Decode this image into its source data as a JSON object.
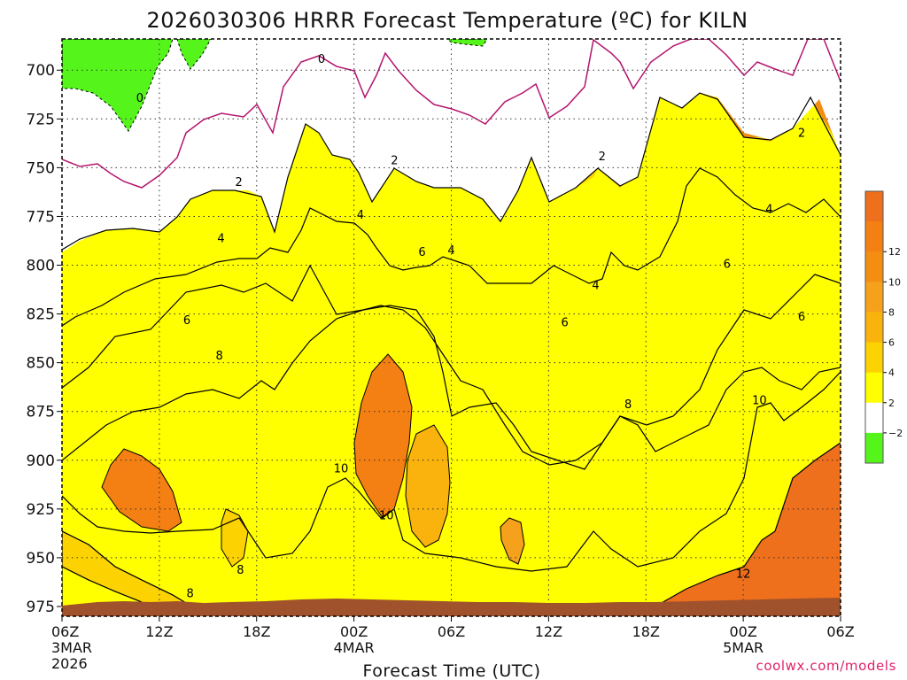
{
  "chart_data": {
    "type": "contour",
    "title": "2026030306 HRRR Forecast Temperature (ºC) for KILN",
    "xlabel": "Forecast Time (UTC)",
    "ylabel": "",
    "credit": "coolwx.com/models",
    "y_axis": {
      "unit": "hPa",
      "inverted": true,
      "range": [
        980,
        684
      ],
      "ticks": [
        "700",
        "725",
        "750",
        "775",
        "800",
        "825",
        "850",
        "875",
        "900",
        "925",
        "950",
        "975"
      ]
    },
    "x_axis": {
      "range_hours": [
        0,
        48
      ],
      "ticks": [
        {
          "label": "06Z",
          "date": "3MAR",
          "year": "2026",
          "hour": 0
        },
        {
          "label": "12Z",
          "date": "",
          "year": "",
          "hour": 6
        },
        {
          "label": "18Z",
          "date": "",
          "year": "",
          "hour": 12
        },
        {
          "label": "00Z",
          "date": "4MAR",
          "year": "",
          "hour": 18
        },
        {
          "label": "06Z",
          "date": "",
          "year": "",
          "hour": 24
        },
        {
          "label": "12Z",
          "date": "",
          "year": "",
          "hour": 30
        },
        {
          "label": "18Z",
          "date": "",
          "year": "",
          "hour": 36
        },
        {
          "label": "00Z",
          "date": "5MAR",
          "year": "",
          "hour": 42
        },
        {
          "label": "06Z",
          "date": "",
          "year": "",
          "hour": 48
        }
      ]
    },
    "grid": true,
    "colorbar": {
      "position": "right",
      "levels": [
        {
          "value": 14,
          "label": "",
          "color": "#ee6f1c"
        },
        {
          "value": 12,
          "label": "12",
          "color": "#f47f12"
        },
        {
          "value": 10,
          "label": "10",
          "color": "#f48e13"
        },
        {
          "value": 8,
          "label": "8",
          "color": "#f6a11c"
        },
        {
          "value": 6,
          "label": "6",
          "color": "#fab30d"
        },
        {
          "value": 4,
          "label": "4",
          "color": "#fcd200"
        },
        {
          "value": 2,
          "label": "2",
          "color": "#ffff00"
        },
        {
          "value": -2,
          "label": "−2",
          "color": "#ffffff"
        },
        {
          "value": -4,
          "label": "",
          "color": "#55f51c"
        }
      ]
    },
    "contour_labels": [
      {
        "value": "0",
        "hour": 4.8,
        "p": 714
      },
      {
        "value": "0",
        "hour": 16.0,
        "p": 694
      },
      {
        "value": "2",
        "hour": 10.9,
        "p": 757
      },
      {
        "value": "2",
        "hour": 20.5,
        "p": 746
      },
      {
        "value": "2",
        "hour": 33.3,
        "p": 744
      },
      {
        "value": "2",
        "hour": 45.6,
        "p": 732
      },
      {
        "value": "4",
        "hour": 9.8,
        "p": 786
      },
      {
        "value": "4",
        "hour": 18.4,
        "p": 774
      },
      {
        "value": "4",
        "hour": 24.0,
        "p": 792
      },
      {
        "value": "4",
        "hour": 32.9,
        "p": 810
      },
      {
        "value": "4",
        "hour": 43.6,
        "p": 771
      },
      {
        "value": "6",
        "hour": 7.7,
        "p": 828
      },
      {
        "value": "6",
        "hour": 22.2,
        "p": 793
      },
      {
        "value": "6",
        "hour": 31.0,
        "p": 829
      },
      {
        "value": "6",
        "hour": 41.0,
        "p": 799
      },
      {
        "value": "6",
        "hour": 45.6,
        "p": 826
      },
      {
        "value": "8",
        "hour": 9.7,
        "p": 846
      },
      {
        "value": "8",
        "hour": 34.9,
        "p": 871
      },
      {
        "value": "8",
        "hour": 11.0,
        "p": 956
      },
      {
        "value": "8",
        "hour": 7.9,
        "p": 968
      },
      {
        "value": "10",
        "hour": 17.2,
        "p": 904
      },
      {
        "value": "10",
        "hour": 20.0,
        "p": 928
      },
      {
        "value": "10",
        "hour": 43.0,
        "p": 869
      },
      {
        "value": "12",
        "hour": 42.0,
        "p": 958
      }
    ]
  }
}
